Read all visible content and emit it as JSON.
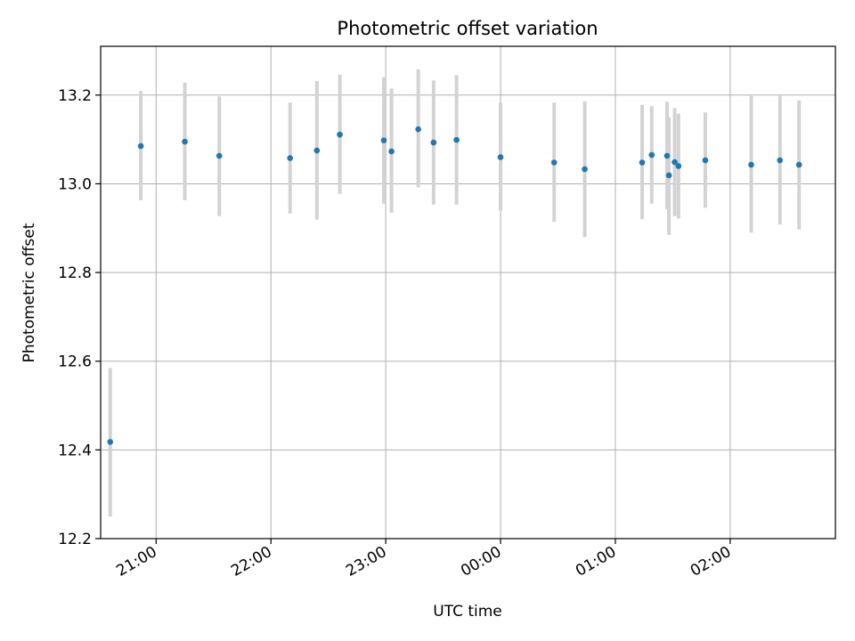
{
  "chart_data": {
    "type": "scatter",
    "title": "Photometric offset variation",
    "xlabel": "UTC time",
    "ylabel": "Photometric offset",
    "x_axis_kind": "time",
    "xlim": [
      "20:31",
      "02:55"
    ],
    "ylim": [
      12.2,
      13.31
    ],
    "yticks": [
      12.2,
      12.4,
      12.6,
      12.8,
      13.0,
      13.2
    ],
    "ytick_labels": [
      "12.2",
      "12.4",
      "12.6",
      "12.8",
      "13.0",
      "13.2"
    ],
    "xticks": [
      "21:00",
      "22:00",
      "23:00",
      "00:00",
      "01:00",
      "02:00"
    ],
    "xtick_labels": [
      "21:00",
      "22:00",
      "23:00",
      "00:00",
      "01:00",
      "02:00"
    ],
    "grid": true,
    "legend": false,
    "marker_color": "#1f77b4",
    "errorbar_color": "#d3d3d3",
    "points": [
      {
        "time": "20:36",
        "y": 12.418,
        "ylow": 12.25,
        "yhigh": 12.585
      },
      {
        "time": "20:52",
        "y": 13.085,
        "ylow": 12.963,
        "yhigh": 13.21
      },
      {
        "time": "21:15",
        "y": 13.095,
        "ylow": 12.963,
        "yhigh": 13.228
      },
      {
        "time": "21:33",
        "y": 13.063,
        "ylow": 12.927,
        "yhigh": 13.197
      },
      {
        "time": "22:10",
        "y": 13.058,
        "ylow": 12.933,
        "yhigh": 13.183
      },
      {
        "time": "22:24",
        "y": 13.075,
        "ylow": 12.919,
        "yhigh": 13.232
      },
      {
        "time": "22:36",
        "y": 13.111,
        "ylow": 12.977,
        "yhigh": 13.246
      },
      {
        "time": "22:59",
        "y": 13.098,
        "ylow": 12.955,
        "yhigh": 13.24
      },
      {
        "time": "23:03",
        "y": 13.073,
        "ylow": 12.935,
        "yhigh": 13.215
      },
      {
        "time": "23:17",
        "y": 13.123,
        "ylow": 12.992,
        "yhigh": 13.258
      },
      {
        "time": "23:25",
        "y": 13.093,
        "ylow": 12.953,
        "yhigh": 13.233
      },
      {
        "time": "23:37",
        "y": 13.099,
        "ylow": 12.953,
        "yhigh": 13.245
      },
      {
        "time": "00:00",
        "y": 13.06,
        "ylow": 12.94,
        "yhigh": 13.183
      },
      {
        "time": "00:28",
        "y": 13.048,
        "ylow": 12.914,
        "yhigh": 13.183
      },
      {
        "time": "00:44",
        "y": 13.033,
        "ylow": 12.88,
        "yhigh": 13.186
      },
      {
        "time": "01:14",
        "y": 13.048,
        "ylow": 12.92,
        "yhigh": 13.178
      },
      {
        "time": "01:19",
        "y": 13.065,
        "ylow": 12.955,
        "yhigh": 13.175
      },
      {
        "time": "01:27",
        "y": 13.063,
        "ylow": 12.943,
        "yhigh": 13.185
      },
      {
        "time": "01:28",
        "y": 13.019,
        "ylow": 12.885,
        "yhigh": 13.15
      },
      {
        "time": "01:31",
        "y": 13.049,
        "ylow": 12.927,
        "yhigh": 13.171
      },
      {
        "time": "01:33",
        "y": 13.04,
        "ylow": 12.922,
        "yhigh": 13.158
      },
      {
        "time": "01:47",
        "y": 13.053,
        "ylow": 12.946,
        "yhigh": 13.161
      },
      {
        "time": "02:11",
        "y": 13.043,
        "ylow": 12.89,
        "yhigh": 13.198
      },
      {
        "time": "02:26",
        "y": 13.053,
        "ylow": 12.908,
        "yhigh": 13.198
      },
      {
        "time": "02:36",
        "y": 13.043,
        "ylow": 12.897,
        "yhigh": 13.188
      }
    ]
  }
}
